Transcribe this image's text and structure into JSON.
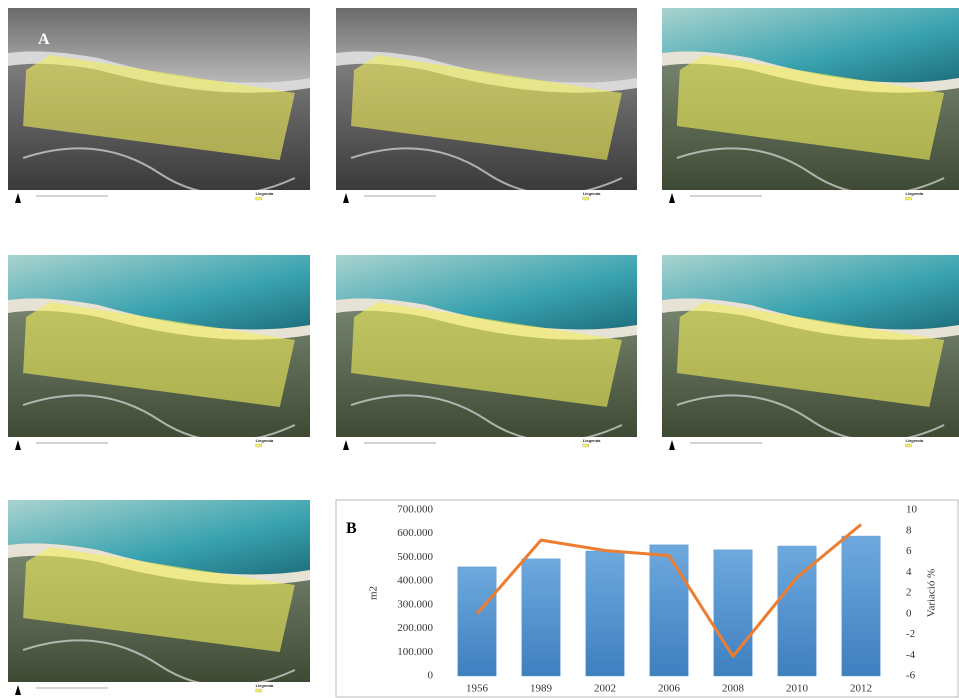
{
  "panel_a_label": "A",
  "map_legend_title": "Llegenda",
  "chart_data": {
    "type": "bar_line",
    "panel_label": "B",
    "categories": [
      "1956",
      "1989",
      "2002",
      "2006",
      "2008",
      "2010",
      "2012"
    ],
    "series": [
      {
        "name": "m2",
        "type": "bar",
        "color": "#5b9bd5",
        "values": [
          460000,
          494000,
          527000,
          553000,
          532000,
          548000,
          590000
        ]
      },
      {
        "name": "Variació %",
        "type": "line",
        "axis": "y2",
        "color": "#ed7d31",
        "values": [
          0,
          7.1,
          6.1,
          5.6,
          -4.1,
          3.5,
          8.6
        ]
      }
    ],
    "ylabel": "m2",
    "y2label": "Variació %",
    "ylim": [
      0,
      700000
    ],
    "yticks": [
      0,
      {
        "value": 100000,
        "label": "100.000"
      },
      {
        "value": 200000,
        "label": "200.000"
      },
      {
        "value": 300000,
        "label": "300.000"
      },
      {
        "value": 400000,
        "label": "400.000"
      },
      {
        "value": 500000,
        "label": "500.000"
      },
      {
        "value": 600000,
        "label": "600.000"
      },
      {
        "value": 700000,
        "label": "700.000"
      }
    ],
    "y2lim": [
      -6,
      10
    ],
    "y2ticks": [
      -6,
      -4,
      -2,
      0,
      2,
      4,
      6,
      8,
      10
    ]
  }
}
